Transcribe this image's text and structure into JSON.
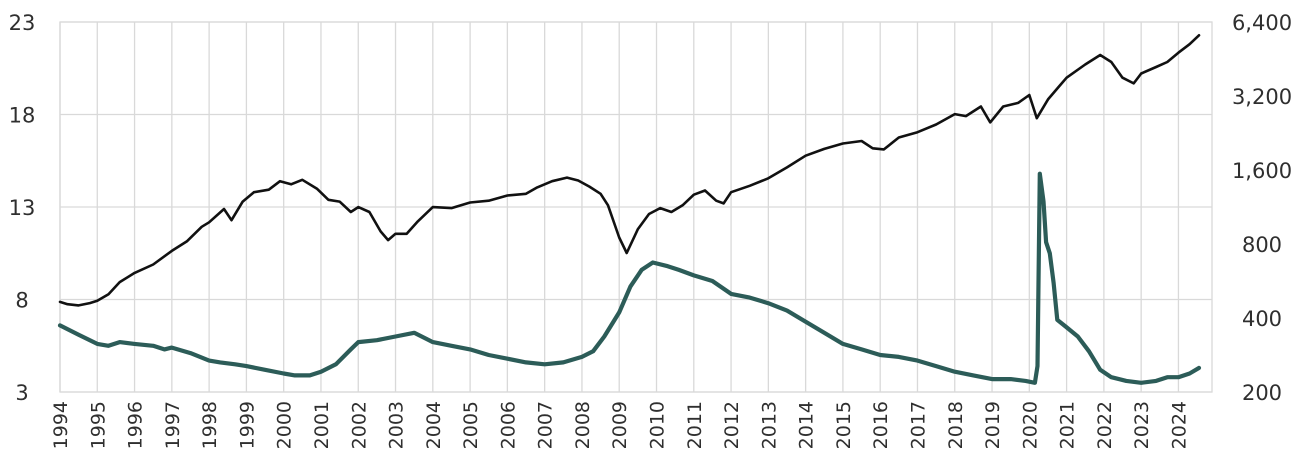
{
  "chart_data": {
    "type": "line",
    "title": "",
    "xlabel": "",
    "ylabel": "",
    "grid": true,
    "legend": "none",
    "x_ticks": [
      "1994",
      "1995",
      "1996",
      "1997",
      "1998",
      "1999",
      "2000",
      "2001",
      "2002",
      "2003",
      "2004",
      "2005",
      "2006",
      "2007",
      "2008",
      "2009",
      "2010",
      "2011",
      "2012",
      "2013",
      "2014",
      "2015",
      "2016",
      "2017",
      "2018",
      "2019",
      "2020",
      "2021",
      "2022",
      "2023",
      "2024"
    ],
    "y_left": {
      "ticks": [
        3,
        8,
        13,
        18,
        23
      ],
      "tick_labels": [
        "3",
        "8",
        "13",
        "18",
        "23"
      ],
      "range": [
        3,
        23
      ]
    },
    "y_right": {
      "scale": "log",
      "ticks": [
        200,
        400,
        800,
        1600,
        3200,
        6400
      ],
      "tick_labels": [
        "200",
        "400",
        "800",
        "1,600",
        "3,200",
        "6,400"
      ],
      "range": [
        200,
        6400
      ]
    },
    "series": [
      {
        "axis": "left",
        "color": "#2c5c58",
        "points": [
          [
            1994.0,
            6.6
          ],
          [
            1994.5,
            6.1
          ],
          [
            1995.0,
            5.6
          ],
          [
            1995.3,
            5.5
          ],
          [
            1995.6,
            5.7
          ],
          [
            1996.0,
            5.6
          ],
          [
            1996.5,
            5.5
          ],
          [
            1996.8,
            5.3
          ],
          [
            1997.0,
            5.4
          ],
          [
            1997.5,
            5.1
          ],
          [
            1998.0,
            4.7
          ],
          [
            1998.3,
            4.6
          ],
          [
            1998.7,
            4.5
          ],
          [
            1999.0,
            4.4
          ],
          [
            1999.5,
            4.2
          ],
          [
            2000.0,
            4.0
          ],
          [
            2000.3,
            3.9
          ],
          [
            2000.7,
            3.9
          ],
          [
            2001.0,
            4.1
          ],
          [
            2001.4,
            4.5
          ],
          [
            2001.8,
            5.3
          ],
          [
            2002.0,
            5.7
          ],
          [
            2002.5,
            5.8
          ],
          [
            2003.0,
            6.0
          ],
          [
            2003.5,
            6.2
          ],
          [
            2003.8,
            5.9
          ],
          [
            2004.0,
            5.7
          ],
          [
            2004.5,
            5.5
          ],
          [
            2005.0,
            5.3
          ],
          [
            2005.5,
            5.0
          ],
          [
            2006.0,
            4.8
          ],
          [
            2006.5,
            4.6
          ],
          [
            2007.0,
            4.5
          ],
          [
            2007.5,
            4.6
          ],
          [
            2008.0,
            4.9
          ],
          [
            2008.3,
            5.2
          ],
          [
            2008.6,
            6.0
          ],
          [
            2009.0,
            7.3
          ],
          [
            2009.3,
            8.7
          ],
          [
            2009.6,
            9.6
          ],
          [
            2009.9,
            10.0
          ],
          [
            2010.3,
            9.8
          ],
          [
            2010.6,
            9.6
          ],
          [
            2011.0,
            9.3
          ],
          [
            2011.5,
            9.0
          ],
          [
            2012.0,
            8.3
          ],
          [
            2012.5,
            8.1
          ],
          [
            2013.0,
            7.8
          ],
          [
            2013.5,
            7.4
          ],
          [
            2014.0,
            6.8
          ],
          [
            2014.5,
            6.2
          ],
          [
            2015.0,
            5.6
          ],
          [
            2015.5,
            5.3
          ],
          [
            2016.0,
            5.0
          ],
          [
            2016.5,
            4.9
          ],
          [
            2017.0,
            4.7
          ],
          [
            2017.5,
            4.4
          ],
          [
            2018.0,
            4.1
          ],
          [
            2018.5,
            3.9
          ],
          [
            2019.0,
            3.7
          ],
          [
            2019.5,
            3.7
          ],
          [
            2019.9,
            3.6
          ],
          [
            2020.15,
            3.5
          ],
          [
            2020.22,
            4.4
          ],
          [
            2020.28,
            14.8
          ],
          [
            2020.38,
            13.3
          ],
          [
            2020.45,
            11.1
          ],
          [
            2020.55,
            10.5
          ],
          [
            2020.65,
            8.9
          ],
          [
            2020.75,
            6.9
          ],
          [
            2021.0,
            6.5
          ],
          [
            2021.3,
            6.0
          ],
          [
            2021.6,
            5.2
          ],
          [
            2021.9,
            4.2
          ],
          [
            2022.2,
            3.8
          ],
          [
            2022.6,
            3.6
          ],
          [
            2023.0,
            3.5
          ],
          [
            2023.4,
            3.6
          ],
          [
            2023.7,
            3.8
          ],
          [
            2024.0,
            3.8
          ],
          [
            2024.3,
            4.0
          ],
          [
            2024.55,
            4.3
          ]
        ]
      },
      {
        "axis": "right",
        "color": "#111111",
        "points": [
          [
            1994.0,
            465
          ],
          [
            1994.2,
            455
          ],
          [
            1994.5,
            450
          ],
          [
            1994.8,
            460
          ],
          [
            1995.0,
            470
          ],
          [
            1995.3,
            500
          ],
          [
            1995.6,
            560
          ],
          [
            1996.0,
            610
          ],
          [
            1996.5,
            660
          ],
          [
            1997.0,
            750
          ],
          [
            1997.4,
            820
          ],
          [
            1997.8,
            940
          ],
          [
            1998.0,
            980
          ],
          [
            1998.4,
            1110
          ],
          [
            1998.6,
            1000
          ],
          [
            1998.9,
            1190
          ],
          [
            1999.2,
            1300
          ],
          [
            1999.6,
            1330
          ],
          [
            1999.9,
            1440
          ],
          [
            2000.2,
            1400
          ],
          [
            2000.5,
            1460
          ],
          [
            2000.9,
            1340
          ],
          [
            2001.2,
            1210
          ],
          [
            2001.5,
            1190
          ],
          [
            2001.8,
            1080
          ],
          [
            2002.0,
            1130
          ],
          [
            2002.3,
            1080
          ],
          [
            2002.6,
            900
          ],
          [
            2002.8,
            830
          ],
          [
            2003.0,
            880
          ],
          [
            2003.3,
            880
          ],
          [
            2003.6,
            990
          ],
          [
            2004.0,
            1130
          ],
          [
            2004.5,
            1120
          ],
          [
            2005.0,
            1180
          ],
          [
            2005.5,
            1200
          ],
          [
            2006.0,
            1260
          ],
          [
            2006.5,
            1280
          ],
          [
            2006.8,
            1360
          ],
          [
            2007.2,
            1440
          ],
          [
            2007.6,
            1490
          ],
          [
            2007.9,
            1450
          ],
          [
            2008.2,
            1370
          ],
          [
            2008.5,
            1280
          ],
          [
            2008.7,
            1150
          ],
          [
            2009.0,
            850
          ],
          [
            2009.2,
            735
          ],
          [
            2009.5,
            920
          ],
          [
            2009.8,
            1060
          ],
          [
            2010.1,
            1120
          ],
          [
            2010.4,
            1080
          ],
          [
            2010.7,
            1150
          ],
          [
            2011.0,
            1270
          ],
          [
            2011.3,
            1320
          ],
          [
            2011.6,
            1200
          ],
          [
            2011.8,
            1170
          ],
          [
            2012.0,
            1300
          ],
          [
            2012.5,
            1380
          ],
          [
            2013.0,
            1480
          ],
          [
            2013.5,
            1640
          ],
          [
            2014.0,
            1830
          ],
          [
            2014.5,
            1950
          ],
          [
            2015.0,
            2050
          ],
          [
            2015.5,
            2100
          ],
          [
            2015.8,
            1960
          ],
          [
            2016.1,
            1940
          ],
          [
            2016.5,
            2170
          ],
          [
            2017.0,
            2280
          ],
          [
            2017.5,
            2450
          ],
          [
            2018.0,
            2700
          ],
          [
            2018.3,
            2650
          ],
          [
            2018.7,
            2900
          ],
          [
            2018.95,
            2500
          ],
          [
            2019.3,
            2900
          ],
          [
            2019.7,
            3000
          ],
          [
            2020.0,
            3230
          ],
          [
            2020.2,
            2600
          ],
          [
            2020.5,
            3100
          ],
          [
            2020.8,
            3500
          ],
          [
            2021.0,
            3800
          ],
          [
            2021.5,
            4300
          ],
          [
            2021.9,
            4700
          ],
          [
            2022.2,
            4400
          ],
          [
            2022.5,
            3800
          ],
          [
            2022.8,
            3600
          ],
          [
            2023.0,
            3950
          ],
          [
            2023.4,
            4200
          ],
          [
            2023.7,
            4400
          ],
          [
            2024.0,
            4800
          ],
          [
            2024.3,
            5200
          ],
          [
            2024.55,
            5650
          ]
        ]
      }
    ]
  }
}
